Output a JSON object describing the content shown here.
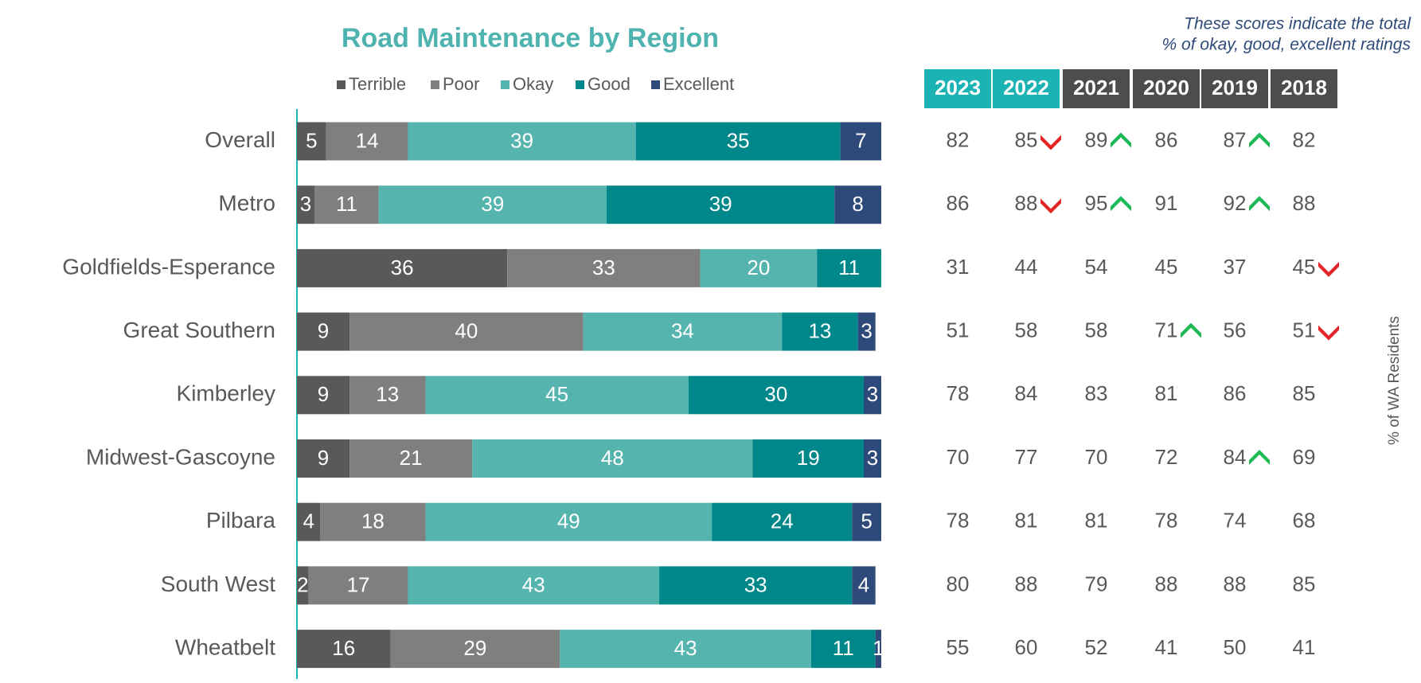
{
  "chart_data": {
    "type": "stacked_bar_horizontal",
    "title": "Road Maintenance by Region",
    "categories": [
      "Overall",
      "Metro",
      "Goldfields-Esperance",
      "Great Southern",
      "Kimberley",
      "Midwest-Gascoyne",
      "Pilbara",
      "South West",
      "Wheatbelt"
    ],
    "xlim": [
      0,
      100
    ],
    "series": [
      {
        "name": "Terrible",
        "color": "#58595b",
        "values": [
          5,
          3,
          36,
          9,
          9,
          9,
          4,
          2,
          16
        ]
      },
      {
        "name": "Poor",
        "color": "#7f7f7f",
        "values": [
          14,
          11,
          33,
          40,
          13,
          21,
          18,
          17,
          29
        ]
      },
      {
        "name": "Okay",
        "color": "#56b4af",
        "values": [
          39,
          39,
          20,
          34,
          45,
          48,
          49,
          43,
          43
        ]
      },
      {
        "name": "Good",
        "color": "#00878a",
        "values": [
          35,
          39,
          11,
          13,
          30,
          19,
          24,
          33,
          11
        ]
      },
      {
        "name": "Excellent",
        "color": "#2e4a7a",
        "values": [
          7,
          8,
          null,
          3,
          3,
          3,
          5,
          4,
          1
        ]
      }
    ],
    "legend": "top"
  },
  "table": {
    "note": [
      "These scores indicate the total",
      "% of okay, good, excellent ratings"
    ],
    "side_label": "% of WA Residents",
    "columns": [
      "2023",
      "2022",
      "2021",
      "2020",
      "2019",
      "2018"
    ],
    "header_colors": [
      "#1bb3b3",
      "#1bb3b3",
      "#4d4d4f",
      "#4d4d4f",
      "#4d4d4f",
      "#4d4d4f"
    ],
    "rows": [
      [
        82,
        85,
        89,
        86,
        87,
        82
      ],
      [
        86,
        88,
        95,
        91,
        92,
        88
      ],
      [
        31,
        44,
        54,
        45,
        37,
        45
      ],
      [
        51,
        58,
        58,
        71,
        56,
        51
      ],
      [
        78,
        84,
        83,
        81,
        86,
        85
      ],
      [
        70,
        77,
        70,
        72,
        84,
        69
      ],
      [
        78,
        81,
        81,
        78,
        74,
        68
      ],
      [
        80,
        88,
        79,
        88,
        88,
        85
      ],
      [
        55,
        60,
        52,
        41,
        50,
        41
      ]
    ],
    "trends": [
      [
        null,
        "down",
        "up",
        null,
        "up",
        null
      ],
      [
        null,
        "down",
        "up",
        null,
        "up",
        null
      ],
      [
        null,
        null,
        null,
        null,
        null,
        "down"
      ],
      [
        null,
        null,
        null,
        "up",
        null,
        "down"
      ],
      [
        null,
        null,
        null,
        null,
        null,
        null
      ],
      [
        null,
        null,
        null,
        null,
        "up",
        null
      ],
      [
        null,
        null,
        null,
        null,
        null,
        null
      ],
      [
        null,
        null,
        null,
        null,
        null,
        null
      ],
      [
        null,
        null,
        null,
        null,
        null,
        null
      ]
    ],
    "trend_colors": {
      "up": "#1db954",
      "down": "#e4262b"
    }
  }
}
